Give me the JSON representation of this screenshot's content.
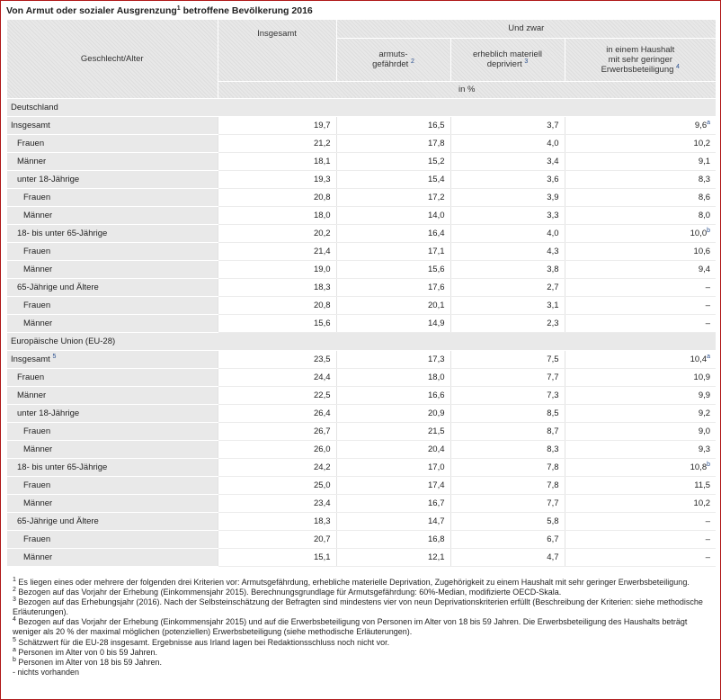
{
  "title": {
    "text": "Von Armut oder sozialer Ausgrenzung",
    "sup": "1",
    "rest": " betroffene Bevölkerung 2016"
  },
  "header": {
    "geschlecht_alter": "Geschlecht/Alter",
    "insgesamt": "Insgesamt",
    "und_zwar": "Und zwar",
    "col1_l1": "armuts-",
    "col1_l2": "gefährdet",
    "col1_sup": "2",
    "col2_l1": "erheblich materiell",
    "col2_l2": "depriviert",
    "col2_sup": "3",
    "col3_l1": "in einem Haushalt",
    "col3_l2": "mit sehr geringer",
    "col3_l3": "Erwerbsbeteiligung",
    "col3_sup": "4",
    "unit": "in %"
  },
  "sections": [
    {
      "label": "Deutschland",
      "rows": [
        {
          "label": "Insgesamt",
          "label_sup": "",
          "indent": 0,
          "values": [
            "19,7",
            "16,5",
            "3,7",
            "9,6"
          ],
          "last_sup": "a"
        },
        {
          "label": "Frauen",
          "label_sup": "",
          "indent": 1,
          "values": [
            "21,2",
            "17,8",
            "4,0",
            "10,2"
          ],
          "last_sup": ""
        },
        {
          "label": "Männer",
          "label_sup": "",
          "indent": 1,
          "values": [
            "18,1",
            "15,2",
            "3,4",
            "9,1"
          ],
          "last_sup": ""
        },
        {
          "label": "unter 18-Jährige",
          "label_sup": "",
          "indent": 1,
          "values": [
            "19,3",
            "15,4",
            "3,6",
            "8,3"
          ],
          "last_sup": ""
        },
        {
          "label": "Frauen",
          "label_sup": "",
          "indent": 2,
          "values": [
            "20,8",
            "17,2",
            "3,9",
            "8,6"
          ],
          "last_sup": ""
        },
        {
          "label": "Männer",
          "label_sup": "",
          "indent": 2,
          "values": [
            "18,0",
            "14,0",
            "3,3",
            "8,0"
          ],
          "last_sup": ""
        },
        {
          "label": "18- bis unter 65-Jährige",
          "label_sup": "",
          "indent": 1,
          "values": [
            "20,2",
            "16,4",
            "4,0",
            "10,0"
          ],
          "last_sup": "b"
        },
        {
          "label": "Frauen",
          "label_sup": "",
          "indent": 2,
          "values": [
            "21,4",
            "17,1",
            "4,3",
            "10,6"
          ],
          "last_sup": ""
        },
        {
          "label": "Männer",
          "label_sup": "",
          "indent": 2,
          "values": [
            "19,0",
            "15,6",
            "3,8",
            "9,4"
          ],
          "last_sup": ""
        },
        {
          "label": "65-Jährige und Ältere",
          "label_sup": "",
          "indent": 1,
          "values": [
            "18,3",
            "17,6",
            "2,7",
            "–"
          ],
          "last_sup": ""
        },
        {
          "label": "Frauen",
          "label_sup": "",
          "indent": 2,
          "values": [
            "20,8",
            "20,1",
            "3,1",
            "–"
          ],
          "last_sup": ""
        },
        {
          "label": "Männer",
          "label_sup": "",
          "indent": 2,
          "values": [
            "15,6",
            "14,9",
            "2,3",
            "–"
          ],
          "last_sup": ""
        }
      ]
    },
    {
      "label": "Europäische Union (EU-28)",
      "rows": [
        {
          "label": "Insgesamt",
          "label_sup": "5",
          "indent": 0,
          "values": [
            "23,5",
            "17,3",
            "7,5",
            "10,4"
          ],
          "last_sup": "a"
        },
        {
          "label": "Frauen",
          "label_sup": "",
          "indent": 1,
          "values": [
            "24,4",
            "18,0",
            "7,7",
            "10,9"
          ],
          "last_sup": ""
        },
        {
          "label": "Männer",
          "label_sup": "",
          "indent": 1,
          "values": [
            "22,5",
            "16,6",
            "7,3",
            "9,9"
          ],
          "last_sup": ""
        },
        {
          "label": "unter 18-Jährige",
          "label_sup": "",
          "indent": 1,
          "values": [
            "26,4",
            "20,9",
            "8,5",
            "9,2"
          ],
          "last_sup": ""
        },
        {
          "label": "Frauen",
          "label_sup": "",
          "indent": 2,
          "values": [
            "26,7",
            "21,5",
            "8,7",
            "9,0"
          ],
          "last_sup": ""
        },
        {
          "label": "Männer",
          "label_sup": "",
          "indent": 2,
          "values": [
            "26,0",
            "20,4",
            "8,3",
            "9,3"
          ],
          "last_sup": ""
        },
        {
          "label": "18- bis unter 65-Jährige",
          "label_sup": "",
          "indent": 1,
          "values": [
            "24,2",
            "17,0",
            "7,8",
            "10,8"
          ],
          "last_sup": "b"
        },
        {
          "label": "Frauen",
          "label_sup": "",
          "indent": 2,
          "values": [
            "25,0",
            "17,4",
            "7,8",
            "11,5"
          ],
          "last_sup": ""
        },
        {
          "label": "Männer",
          "label_sup": "",
          "indent": 2,
          "values": [
            "23,4",
            "16,7",
            "7,7",
            "10,2"
          ],
          "last_sup": ""
        },
        {
          "label": "65-Jährige und Ältere",
          "label_sup": "",
          "indent": 1,
          "values": [
            "18,3",
            "14,7",
            "5,8",
            "–"
          ],
          "last_sup": ""
        },
        {
          "label": "Frauen",
          "label_sup": "",
          "indent": 2,
          "values": [
            "20,7",
            "16,8",
            "6,7",
            "–"
          ],
          "last_sup": ""
        },
        {
          "label": "Männer",
          "label_sup": "",
          "indent": 2,
          "values": [
            "15,1",
            "12,1",
            "4,7",
            "–"
          ],
          "last_sup": ""
        }
      ]
    }
  ],
  "footnotes": [
    {
      "mark": "1",
      "text": "Es liegen eines oder mehrere der folgenden drei Kriterien vor: Armutsgefährdung, erhebliche materielle Deprivation, Zugehörigkeit zu einem Haushalt mit sehr geringer Erwerbsbeteiligung."
    },
    {
      "mark": "2",
      "text": "Bezogen auf das Vorjahr der Erhebung (Einkommensjahr 2015). Berechnungsgrundlage für Armutsgefährdung: 60%-Median, modifizierte OECD-Skala."
    },
    {
      "mark": "3",
      "text": "Bezogen auf das Erhebungsjahr (2016). Nach der Selbsteinschätzung der Befragten sind mindestens vier von neun Deprivationskriterien erfüllt (Beschreibung der Kriterien: siehe methodische Erläuterungen)."
    },
    {
      "mark": "4",
      "text": "Bezogen auf das Vorjahr der Erhebung (Einkommensjahr 2015) und auf die Erwerbsbeteiligung von Personen im Alter von 18 bis 59 Jahren. Die Erwerbsbeteiligung des Haushalts beträgt weniger als 20 % der maximal möglichen (potenziellen) Erwerbsbeteiligung (siehe methodische Erläuterungen)."
    },
    {
      "mark": "5",
      "text": "Schätzwert für die EU-28 insgesamt. Ergebnisse aus Irland lagen bei Redaktionsschluss noch nicht vor."
    },
    {
      "mark": "a",
      "text": "Personen im Alter von 0 bis 59 Jahren."
    },
    {
      "mark": "b",
      "text": "Personen im Alter von 18 bis 59 Jahren."
    },
    {
      "mark": "",
      "text": "- nichts vorhanden"
    }
  ]
}
